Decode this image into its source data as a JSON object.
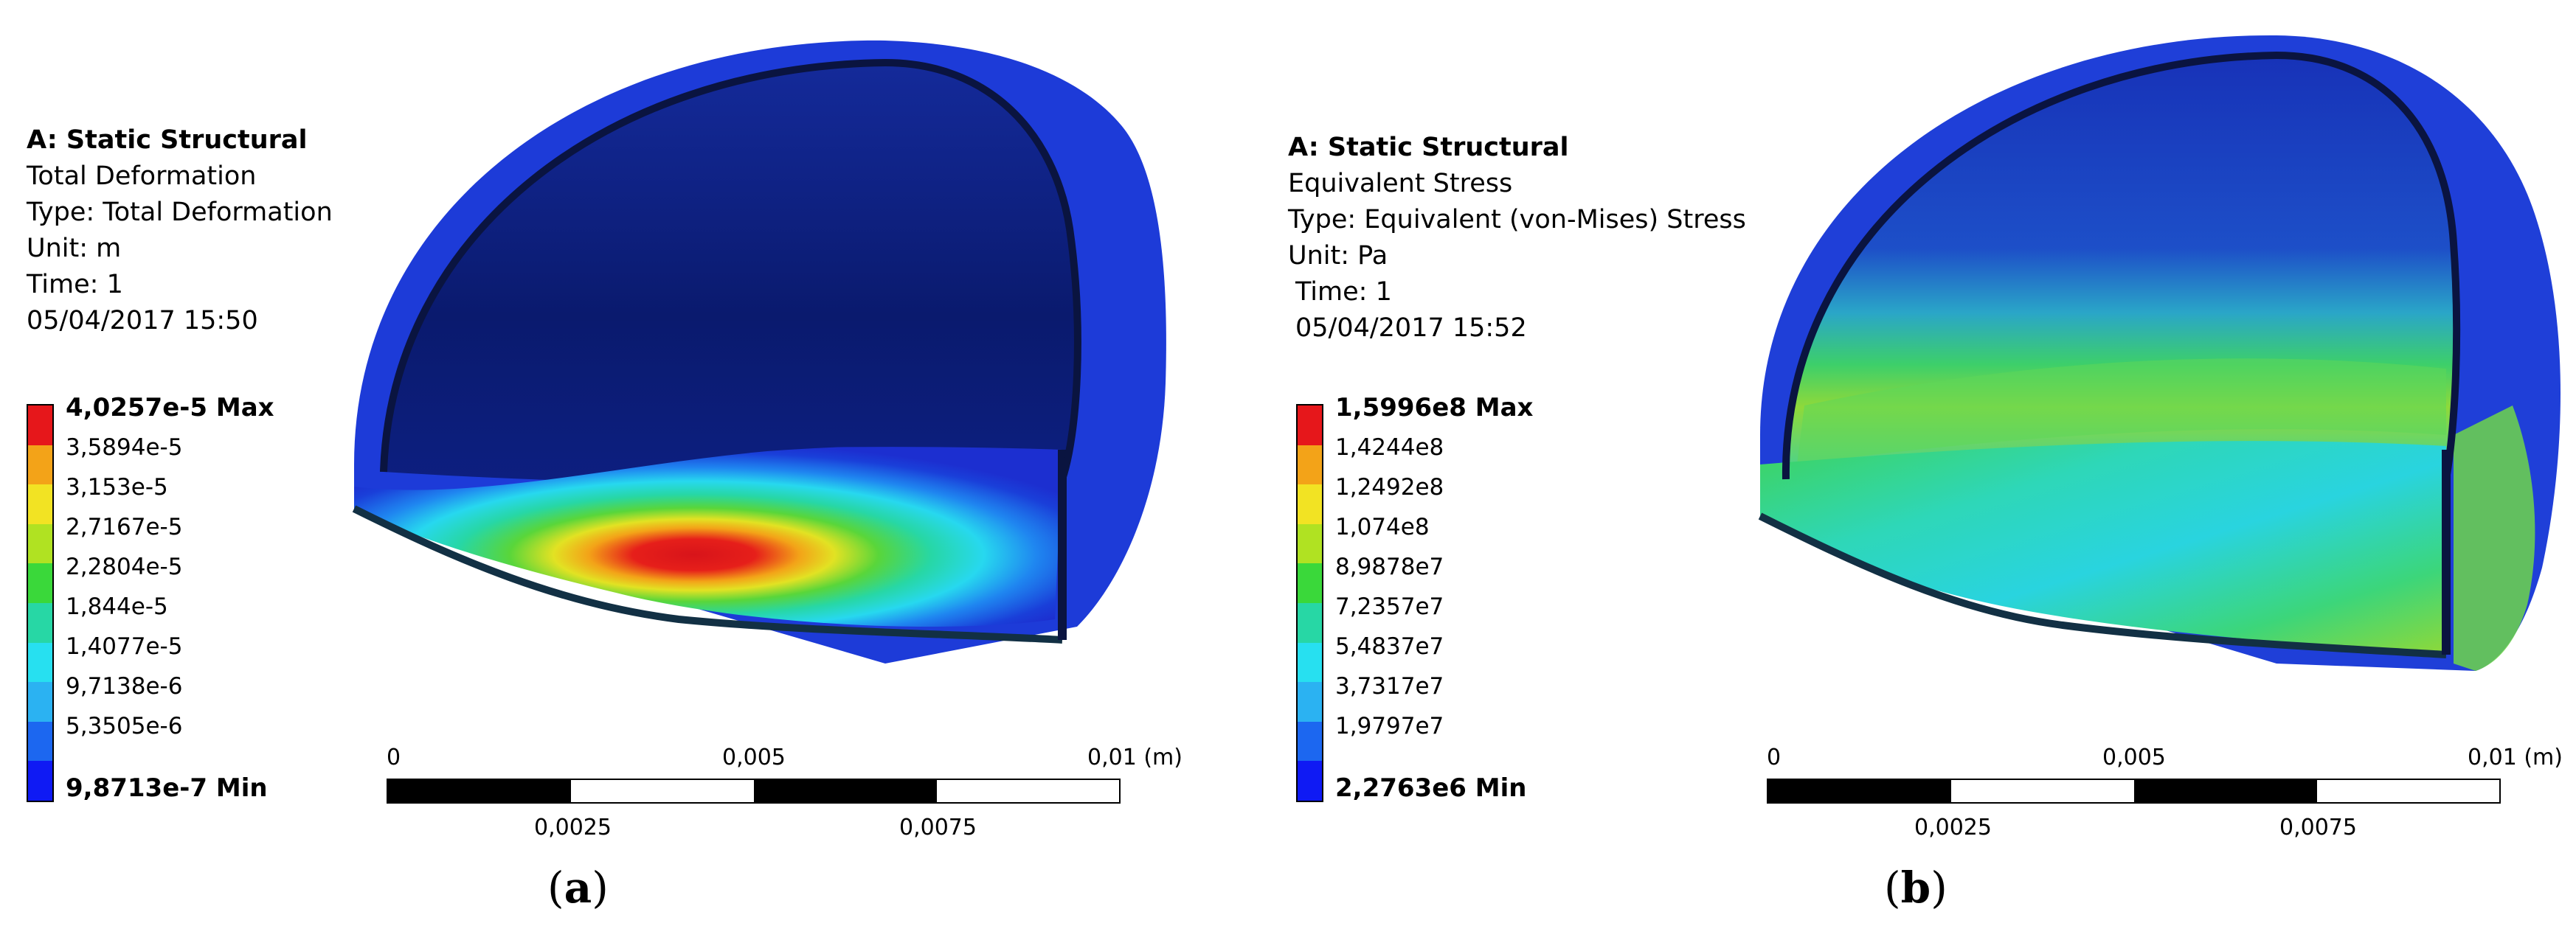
{
  "panels": [
    {
      "id": "a",
      "header": {
        "title": "A: Static Structural",
        "result": "Total Deformation",
        "type": "Type: Total Deformation",
        "unit": "Unit: m",
        "time": "Time: 1",
        "timestamp": "05/04/2017 15:50"
      },
      "legend": {
        "max_label": "4,0257e-5 Max",
        "min_label": "9,8713e-7 Min",
        "values": [
          "3,5894e-5",
          "3,153e-5",
          "2,7167e-5",
          "2,2804e-5",
          "1,844e-5",
          "1,4077e-5",
          "9,7138e-6",
          "5,3505e-6"
        ],
        "colors": [
          "#e6171b",
          "#f3a318",
          "#f2e323",
          "#b0e222",
          "#3ad83a",
          "#27d7a5",
          "#27e0f0",
          "#2bb2f2",
          "#1c67f0",
          "#0f1af4"
        ]
      },
      "scale_bar": {
        "top_ticks": [
          "0",
          "0,005",
          "0,01 (m)"
        ],
        "bottom_ticks": [
          "0,0025",
          "0,0075"
        ]
      },
      "caption": {
        "open": "(",
        "letter": "a",
        "close": ")"
      }
    },
    {
      "id": "b",
      "header": {
        "title": "A: Static Structural",
        "result": "Equivalent Stress",
        "type": "Type: Equivalent (von-Mises) Stress",
        "unit": "Unit: Pa",
        "time": "Time: 1",
        "timestamp": "05/04/2017 15:52"
      },
      "legend": {
        "max_label": "1,5996e8 Max",
        "min_label": "2,2763e6 Min",
        "values": [
          "1,4244e8",
          "1,2492e8",
          "1,074e8",
          "8,9878e7",
          "7,2357e7",
          "5,4837e7",
          "3,7317e7",
          "1,9797e7"
        ],
        "colors": [
          "#e6171b",
          "#f3a318",
          "#f2e323",
          "#b0e222",
          "#3ad83a",
          "#27d7a5",
          "#27e0f0",
          "#2bb2f2",
          "#1c67f0",
          "#0f1af4"
        ]
      },
      "scale_bar": {
        "top_ticks": [
          "0",
          "0,005",
          "0,01 (m)"
        ],
        "bottom_ticks": [
          "0,0025",
          "0,0075"
        ]
      },
      "caption": {
        "open": "(",
        "letter": "b",
        "close": ")"
      }
    }
  ]
}
